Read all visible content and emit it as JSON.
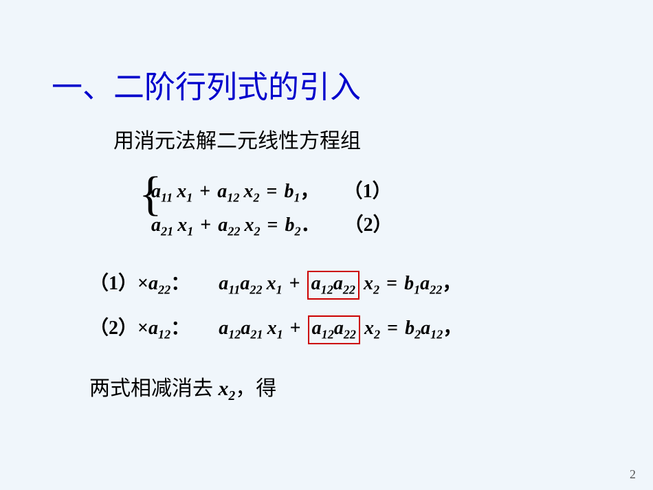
{
  "slide": {
    "title": "一、二阶行列式的引入",
    "subtitle": "用消元法解二元线性方程组",
    "pageNumber": "2",
    "colors": {
      "background": "#f0f6fb",
      "title": "#0000cc",
      "text": "#000000",
      "boxBorder": "#cc0000"
    },
    "fonts": {
      "titleSize": 45,
      "subtitleSize": 30,
      "mathSize": 28
    },
    "system": {
      "eq1": {
        "a11": "a",
        "s11": "11",
        "x1": "x",
        "sx1": "1",
        "a12": "a",
        "s12": "12",
        "x2": "x",
        "sx2": "2",
        "b": "b",
        "sb": "1",
        "comma": "，",
        "label": "1"
      },
      "eq2": {
        "a21": "a",
        "s21": "21",
        "x1": "x",
        "sx1": "1",
        "a22": "a",
        "s22": "22",
        "x2": "x",
        "sx2": "2",
        "b": "b",
        "sb": "2",
        "period": "．",
        "label": "2"
      }
    },
    "step1": {
      "tag": "1",
      "mult_a": "a",
      "mult_s": "22",
      "colon": "：",
      "t1a": "a",
      "t1s": "11",
      "t2a": "a",
      "t2s": "22",
      "x1": "x",
      "xs1": "1",
      "bx1a": "a",
      "bx1s": "12",
      "bx2a": "a",
      "bx2s": "22",
      "x2": "x",
      "xs2": "2",
      "rb": "b",
      "rbs": "1",
      "ra": "a",
      "ras": "22",
      "comma": "，"
    },
    "step2": {
      "tag": "2",
      "mult_a": "a",
      "mult_s": "12",
      "colon": "：",
      "t1a": "a",
      "t1s": "12",
      "t2a": "a",
      "t2s": "21",
      "x1": "x",
      "xs1": "1",
      "bx1a": "a",
      "bx1s": "12",
      "bx2a": "a",
      "bx2s": "22",
      "x2": "x",
      "xs2": "2",
      "rb": "b",
      "rbs": "2",
      "ra": "a",
      "ras": "12",
      "comma": "，"
    },
    "conclusion": {
      "pre": "两式相减消去 ",
      "var": "x",
      "vars": "2",
      "post": "，得"
    }
  }
}
